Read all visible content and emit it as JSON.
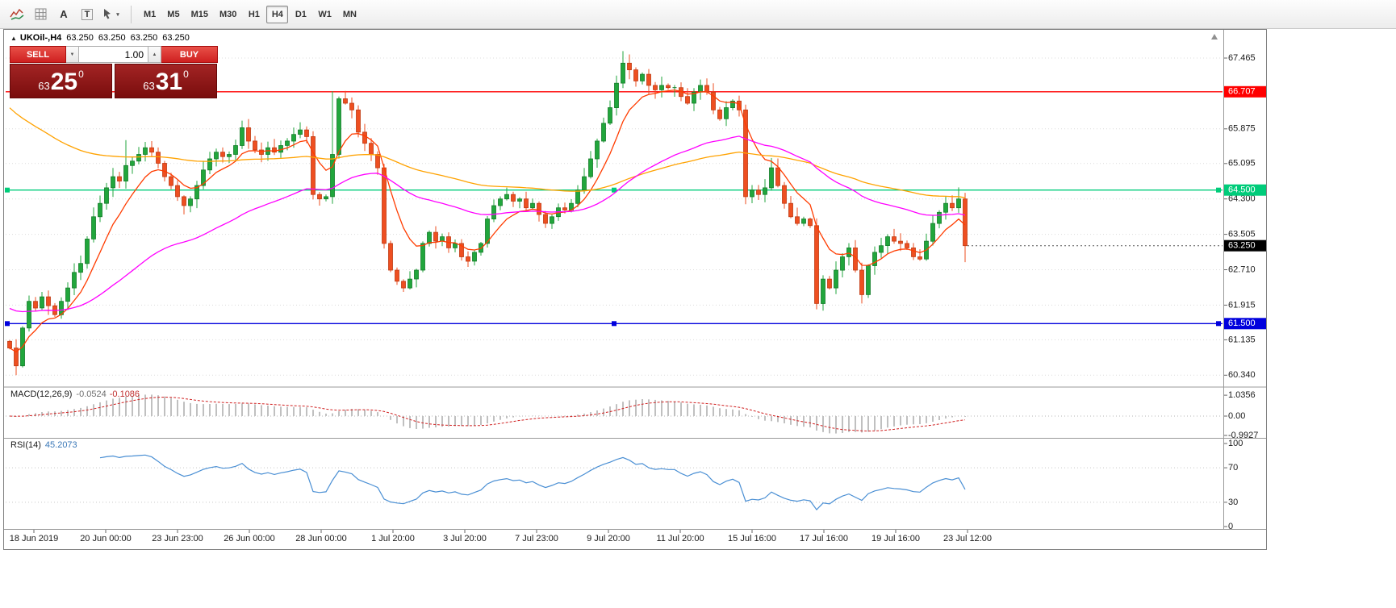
{
  "toolbar": {
    "icons": [
      {
        "name": "indicator-list",
        "glyph": "zigzag"
      },
      {
        "name": "grid",
        "glyph": "grid"
      },
      {
        "name": "label-tool",
        "glyph": "A"
      },
      {
        "name": "text-tool",
        "glyph": "T"
      },
      {
        "name": "cursor-tool",
        "glyph": "arrow"
      }
    ],
    "timeframes": [
      {
        "label": "M1",
        "active": false
      },
      {
        "label": "M5",
        "active": false
      },
      {
        "label": "M15",
        "active": false
      },
      {
        "label": "M30",
        "active": false
      },
      {
        "label": "H1",
        "active": false
      },
      {
        "label": "H4",
        "active": true
      },
      {
        "label": "D1",
        "active": false
      },
      {
        "label": "W1",
        "active": false
      },
      {
        "label": "MN",
        "active": false
      }
    ]
  },
  "chart": {
    "collapse_glyph": "▲",
    "symbol_line": {
      "symbol": "UKOil-,H4",
      "open": "63.250",
      "high": "63.250",
      "low": "63.250",
      "close": "63.250"
    },
    "trade_panel": {
      "sell_label": "SELL",
      "buy_label": "BUY",
      "volume": "1.00",
      "spin_down": "▼",
      "spin_up": "▲",
      "sell_price": {
        "head": "63",
        "big": "25",
        "sup": "0"
      },
      "buy_price": {
        "head": "63",
        "big": "31",
        "sup": "0"
      }
    },
    "current_price": {
      "value": 63.25,
      "label": "63.250",
      "tag_color": "#000000"
    },
    "price_scale_ticks": [
      "67.465",
      "65.875",
      "65.095",
      "64.300",
      "63.505",
      "62.710",
      "61.915",
      "61.135",
      "60.340"
    ],
    "hlines": [
      {
        "price": 66.707,
        "label": "66.707",
        "color": "#ff0000",
        "handles": false
      },
      {
        "price": 64.5,
        "label": "64.500",
        "color": "#00cc7a",
        "handles": true
      },
      {
        "price": 61.5,
        "label": "61.500",
        "color": "#0000dd",
        "handles": true
      }
    ]
  },
  "panels": {
    "macd": {
      "title": "MACD(12,26,9)",
      "value_main": "-0.0524",
      "value_signal": "-0.1086",
      "axis_values": [
        1.0356,
        0,
        -0.9927
      ],
      "axis_labels": [
        "1.0356",
        "0.00",
        "-0.9927"
      ],
      "histogram_color": "#c0c0c0",
      "signal_color": "#d02020"
    },
    "rsi": {
      "title": "RSI(14)",
      "value": "45.2073",
      "axis_values": [
        100,
        70,
        30,
        0
      ],
      "axis_labels": [
        "100",
        "70",
        "30",
        "0"
      ],
      "levels": [
        70,
        30
      ],
      "line_color": "#4a8fd4"
    }
  },
  "time_axis": {
    "labels": [
      "18 Jun 2019",
      "20 Jun 00:00",
      "23 Jun 23:00",
      "26 Jun 00:00",
      "28 Jun 00:00",
      "1 Jul 20:00",
      "3 Jul 20:00",
      "7 Jul 23:00",
      "9 Jul 20:00",
      "11 Jul 20:00",
      "15 Jul 16:00",
      "17 Jul 16:00",
      "19 Jul 16:00",
      "23 Jul 12:00"
    ]
  },
  "chart_data": {
    "type": "candlestick",
    "symbol": "UKOil-",
    "timeframe": "H4",
    "ylim": [
      60.1,
      68.1
    ],
    "yticks": [
      67.465,
      65.875,
      65.095,
      64.3,
      63.505,
      62.71,
      61.915,
      61.135,
      60.34
    ],
    "bull_color": "#21a63c",
    "bear_color": "#ee4f21",
    "first_open": 61.1,
    "closes": [
      60.95,
      60.55,
      61.4,
      62.0,
      61.85,
      62.1,
      61.9,
      61.7,
      62.0,
      62.3,
      62.65,
      62.85,
      63.4,
      63.9,
      64.2,
      64.55,
      64.8,
      64.7,
      65.05,
      65.15,
      65.3,
      65.45,
      65.35,
      65.1,
      64.8,
      64.6,
      64.35,
      64.15,
      64.3,
      64.6,
      64.95,
      65.2,
      65.35,
      65.25,
      65.3,
      65.5,
      65.9,
      65.6,
      65.4,
      65.3,
      65.45,
      65.35,
      65.5,
      65.6,
      65.75,
      65.85,
      65.7,
      64.4,
      64.3,
      64.35,
      65.3,
      66.55,
      66.45,
      66.3,
      65.8,
      65.55,
      65.3,
      65.0,
      63.3,
      62.7,
      62.45,
      62.3,
      62.5,
      62.7,
      63.3,
      63.55,
      63.35,
      63.45,
      63.2,
      63.3,
      63.0,
      62.9,
      63.1,
      63.3,
      63.85,
      64.15,
      64.3,
      64.4,
      64.25,
      64.3,
      64.1,
      64.2,
      63.95,
      63.75,
      63.9,
      64.1,
      64.05,
      64.2,
      64.5,
      64.8,
      65.2,
      65.6,
      66.0,
      66.35,
      66.9,
      67.35,
      67.2,
      66.95,
      67.1,
      66.85,
      66.75,
      66.85,
      66.8,
      66.8,
      66.6,
      66.45,
      66.7,
      66.85,
      66.7,
      66.3,
      66.1,
      66.35,
      66.5,
      66.3,
      64.35,
      64.5,
      64.4,
      64.55,
      65.0,
      64.6,
      64.2,
      63.9,
      63.75,
      63.85,
      63.7,
      61.95,
      62.5,
      62.3,
      62.7,
      63.0,
      63.2,
      62.7,
      62.15,
      62.8,
      63.1,
      63.25,
      63.45,
      63.35,
      63.3,
      63.2,
      63.0,
      62.95,
      63.35,
      63.75,
      64.0,
      64.2,
      64.1,
      64.3,
      63.25
    ],
    "wick_overrides": {
      "1": {
        "l": 60.34
      },
      "18": {
        "h": 65.62
      },
      "36": {
        "h": 66.06
      },
      "50": {
        "h": 66.72
      },
      "95": {
        "h": 67.62
      },
      "113": {
        "h": 66.62
      },
      "118": {
        "h": 65.22
      },
      "125": {
        "l": 61.82
      },
      "132": {
        "l": 61.95
      },
      "147": {
        "h": 64.56
      },
      "148": {
        "l": 62.88
      }
    },
    "overlays": [
      {
        "name": "ma-fast",
        "type": "ema",
        "period": 8,
        "color": "#ff3c00",
        "seed": null
      },
      {
        "name": "ma-medium",
        "type": "ema",
        "period": 89,
        "color": "#ffa200",
        "seed": 66.47
      },
      {
        "name": "ma-slow",
        "type": "ema",
        "period": 45,
        "color": "#ff00ff",
        "seed": 61.88
      }
    ],
    "indicators": [
      {
        "name": "MACD",
        "params": [
          12,
          26,
          9
        ]
      },
      {
        "name": "RSI",
        "params": [
          14
        ]
      }
    ]
  }
}
